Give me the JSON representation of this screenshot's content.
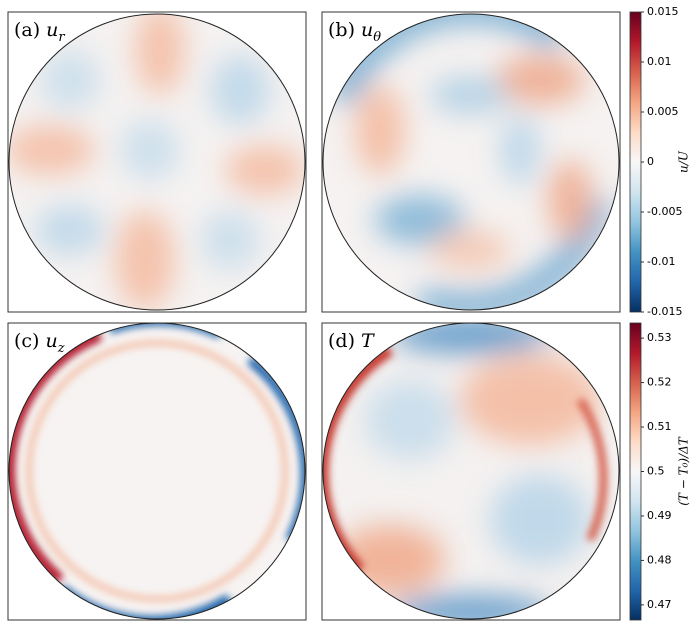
{
  "panels": [
    {
      "label": "(a)",
      "symbol": "u",
      "sub": "r"
    },
    {
      "label": "(b)",
      "symbol": "u",
      "sub": "θ"
    },
    {
      "label": "(c)",
      "symbol": "u",
      "sub": "z"
    },
    {
      "label": "(d)",
      "symbol": "T",
      "sub": null
    }
  ],
  "chart_data": [
    {
      "type": "colorbar",
      "label": "u/U",
      "ylim": [
        -0.015,
        0.015
      ],
      "yticks": [
        -0.015,
        -0.01,
        -0.005,
        0,
        0.005,
        0.01,
        0.015
      ],
      "colors": [
        "#053061",
        "#2166ac",
        "#4393c3",
        "#92c5de",
        "#d1e5f0",
        "#f7f7f7",
        "#fddbc7",
        "#f4a582",
        "#d6604d",
        "#b2182b",
        "#67001f"
      ]
    },
    {
      "type": "colorbar",
      "label": "(T − T₀)/ΔT",
      "ylim": [
        0.4666,
        0.5334
      ],
      "yticks": [
        0.47,
        0.48,
        0.49,
        0.5,
        0.51,
        0.52,
        0.53
      ],
      "colors": [
        "#053061",
        "#2166ac",
        "#4393c3",
        "#92c5de",
        "#d1e5f0",
        "#f7f7f7",
        "#fddbc7",
        "#f4a582",
        "#d6604d",
        "#b2182b",
        "#67001f"
      ]
    }
  ]
}
